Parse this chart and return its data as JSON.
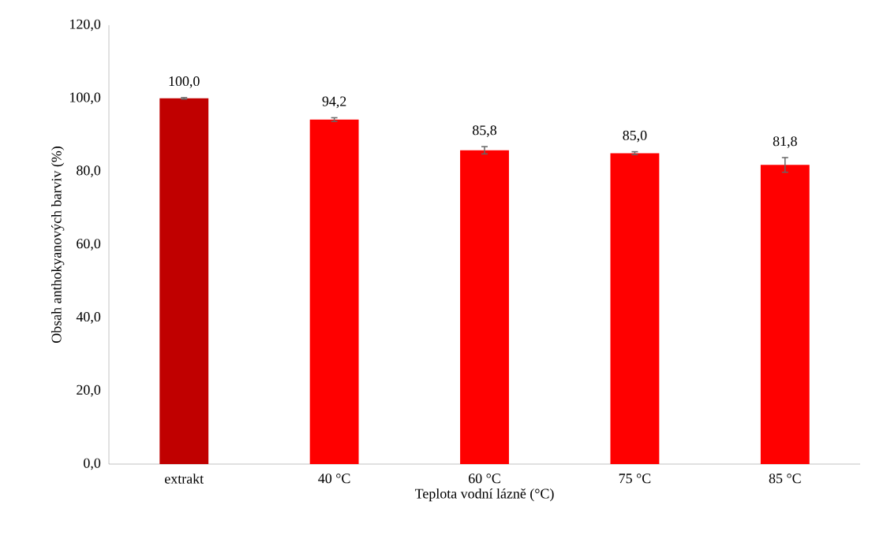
{
  "chart_data": {
    "type": "bar",
    "xlabel": "Teplota vodní lázně (°C)",
    "ylabel": "Obsah anthokyanových barviv (%)",
    "categories": [
      "extrakt",
      "40 °C",
      "60 °C",
      "75 °C",
      "85 °C"
    ],
    "values": [
      100.0,
      94.2,
      85.8,
      85.0,
      81.8
    ],
    "colors": [
      "#c00000",
      "#ff0000",
      "#ff0000",
      "#ff0000",
      "#ff0000"
    ],
    "errors": [
      0.2,
      0.5,
      1.0,
      0.4,
      2.0
    ],
    "value_labels": [
      "100,0",
      "94,2",
      "85,8",
      "85,0",
      "81,8"
    ],
    "ylim": [
      0,
      120
    ],
    "yticks": [
      {
        "value": 0,
        "label": "0,0"
      },
      {
        "value": 20,
        "label": "20,0"
      },
      {
        "value": 40,
        "label": "40,0"
      },
      {
        "value": 60,
        "label": "60,0"
      },
      {
        "value": 80,
        "label": "80,0"
      },
      {
        "value": 100,
        "label": "100,0"
      },
      {
        "value": 120,
        "label": "120,0"
      }
    ]
  }
}
